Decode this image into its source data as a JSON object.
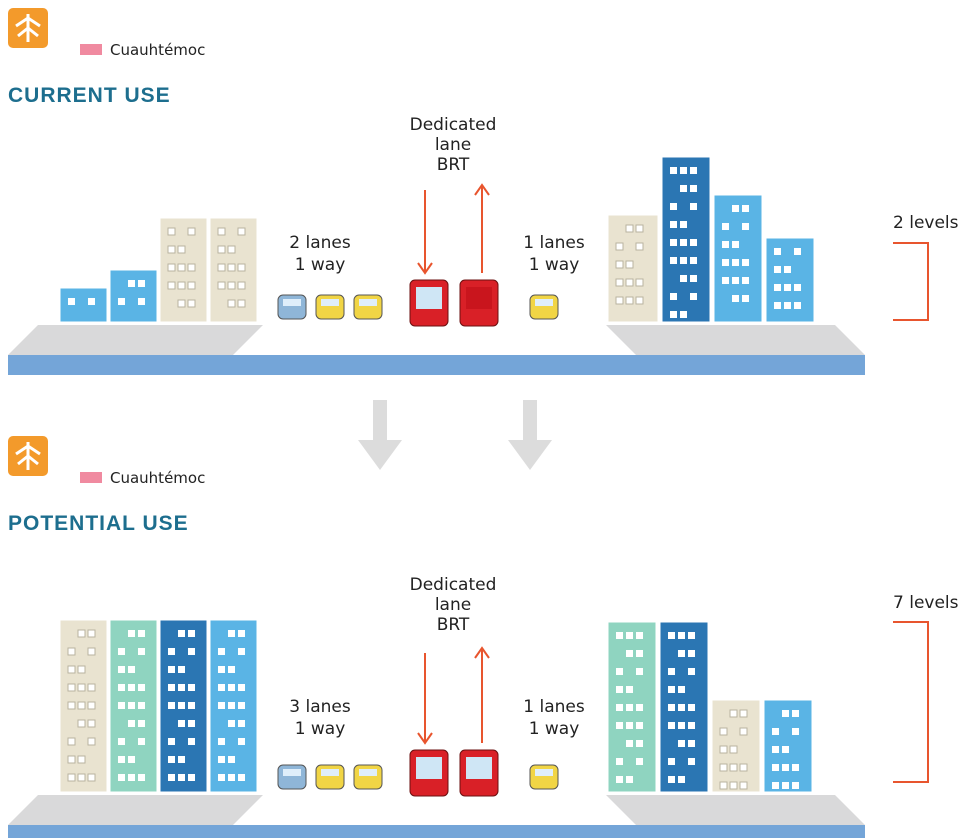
{
  "panels": [
    {
      "station": "Cuauhtémoc",
      "heading": "CURRENT USE",
      "center_label": [
        "Dedicated",
        "lane",
        "BRT"
      ],
      "left_lanes": [
        "2 lanes",
        "1 way"
      ],
      "right_lanes": [
        "1 lanes",
        "1 way"
      ],
      "levels": "2 levels"
    },
    {
      "station": "Cuauhtémoc",
      "heading": "POTENTIAL USE",
      "center_label": [
        "Dedicated",
        "lane",
        "BRT"
      ],
      "left_lanes": [
        "3 lanes",
        "1 way"
      ],
      "right_lanes": [
        "1 lanes",
        "1 way"
      ],
      "levels": "7 levels"
    }
  ]
}
